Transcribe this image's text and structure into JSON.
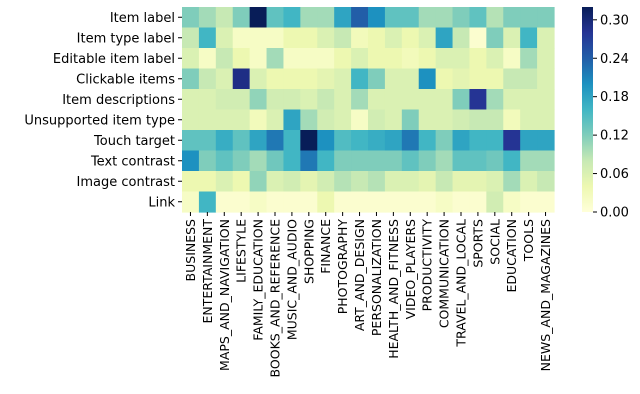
{
  "chart_data": {
    "type": "heatmap",
    "title": "",
    "xlabel": "",
    "ylabel": "",
    "colormap": "YlGnBu",
    "vmin": 0,
    "vmax": 0.32,
    "colorbar_ticks": [
      "0.00",
      "0.06",
      "0.12",
      "0.18",
      "0.24",
      "0.30"
    ],
    "colorbar_tick_values": [
      0.0,
      0.06,
      0.12,
      0.18,
      0.24,
      0.3
    ],
    "rows": [
      "Item label",
      "Item type label",
      "Editable item label",
      "Clickable items",
      "Item descriptions",
      "Unsupported item type",
      "Touch target",
      "Text contrast",
      "Image contrast",
      "Link"
    ],
    "columns": [
      "BUSINESS",
      "ENTERTAINMENT",
      "MAPS_AND_NAVIGATION",
      "LIFESTYLE",
      "FAMILY_EDUCATION",
      "BOOKS_AND_REFERENCE",
      "MUSIC_AND_AUDIO",
      "SHOPPING",
      "FINANCE",
      "PHOTOGRAPHY",
      "ART_AND_DESIGN",
      "PERSONALIZATION",
      "HEALTH_AND_FITNESS",
      "VIDEO_PLAYERS",
      "PRODUCTIVITY",
      "COMMUNICATION",
      "TRAVEL_AND_LOCAL",
      "SPORTS",
      "SOCIAL",
      "EDUCATION",
      "TOOLS",
      "NEWS_AND_MAGAZINES"
    ],
    "values": [
      [
        0.12,
        0.1,
        0.08,
        0.12,
        0.32,
        0.14,
        0.16,
        0.1,
        0.1,
        0.18,
        0.24,
        0.2,
        0.14,
        0.14,
        0.1,
        0.1,
        0.12,
        0.14,
        0.09,
        0.12,
        0.12,
        0.12
      ],
      [
        0.08,
        0.16,
        0.06,
        0.02,
        0.02,
        0.02,
        0.04,
        0.04,
        0.06,
        0.08,
        0.03,
        0.04,
        0.06,
        0.04,
        0.06,
        0.18,
        0.08,
        0.01,
        0.12,
        0.06,
        0.16,
        0.06
      ],
      [
        0.06,
        0.02,
        0.08,
        0.04,
        0.02,
        0.1,
        0.02,
        0.02,
        0.02,
        0.04,
        0.06,
        0.04,
        0.04,
        0.03,
        0.04,
        0.06,
        0.06,
        0.04,
        0.06,
        0.02,
        0.1,
        0.06
      ],
      [
        0.12,
        0.08,
        0.06,
        0.29,
        0.06,
        0.04,
        0.04,
        0.04,
        0.05,
        0.06,
        0.16,
        0.12,
        0.06,
        0.06,
        0.2,
        0.04,
        0.05,
        0.04,
        0.04,
        0.08,
        0.08,
        0.06
      ],
      [
        0.06,
        0.06,
        0.07,
        0.07,
        0.11,
        0.07,
        0.07,
        0.06,
        0.08,
        0.06,
        0.1,
        0.06,
        0.06,
        0.06,
        0.06,
        0.06,
        0.12,
        0.28,
        0.1,
        0.06,
        0.06,
        0.06
      ],
      [
        0.06,
        0.06,
        0.06,
        0.06,
        0.03,
        0.06,
        0.18,
        0.1,
        0.07,
        0.06,
        0.02,
        0.07,
        0.06,
        0.12,
        0.06,
        0.06,
        0.07,
        0.08,
        0.08,
        0.03,
        0.06,
        0.06
      ],
      [
        0.14,
        0.14,
        0.17,
        0.14,
        0.18,
        0.22,
        0.16,
        0.32,
        0.2,
        0.15,
        0.16,
        0.17,
        0.18,
        0.22,
        0.16,
        0.12,
        0.18,
        0.16,
        0.16,
        0.28,
        0.18,
        0.18
      ],
      [
        0.2,
        0.12,
        0.14,
        0.12,
        0.1,
        0.13,
        0.16,
        0.22,
        0.16,
        0.12,
        0.12,
        0.12,
        0.12,
        0.14,
        0.12,
        0.1,
        0.14,
        0.14,
        0.13,
        0.16,
        0.1,
        0.1
      ],
      [
        0.04,
        0.04,
        0.06,
        0.04,
        0.11,
        0.06,
        0.07,
        0.05,
        0.07,
        0.09,
        0.08,
        0.09,
        0.06,
        0.06,
        0.05,
        0.08,
        0.05,
        0.05,
        0.06,
        0.1,
        0.06,
        0.08
      ],
      [
        0.02,
        0.16,
        0.01,
        0.01,
        0.02,
        0.01,
        0.01,
        0.01,
        0.04,
        0.01,
        0.01,
        0.01,
        0.01,
        0.01,
        0.01,
        0.02,
        0.01,
        0.01,
        0.07,
        0.02,
        0.01,
        0.01
      ]
    ]
  }
}
